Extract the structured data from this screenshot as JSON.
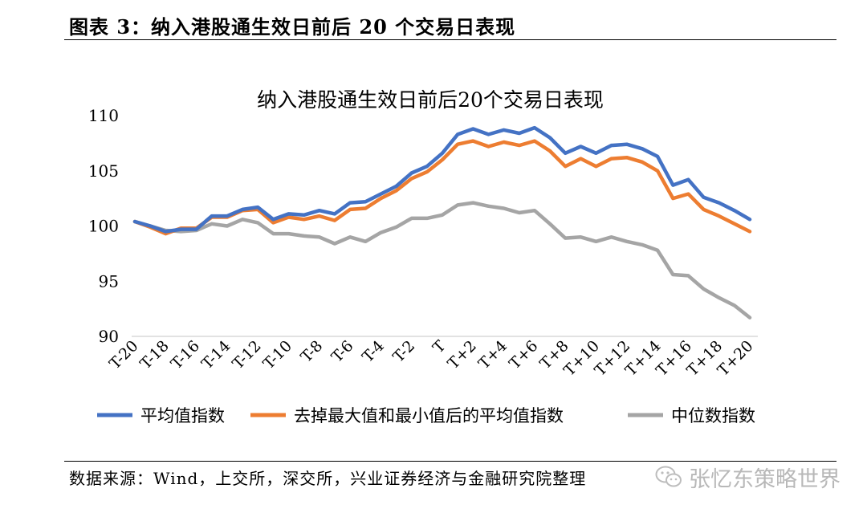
{
  "figure": {
    "title": "图表 3：纳入港股通生效日前后 20 个交易日表现",
    "source": "数据来源：Wind，上交所，深交所，兴业证券经济与金融研究院整理",
    "watermark": "张忆东策略世界"
  },
  "chart_data": {
    "type": "line",
    "title": "纳入港股通生效日前后20个交易日表现",
    "xlabel": "",
    "ylabel": "",
    "ylim": [
      90,
      110
    ],
    "yticks": [
      90,
      95,
      100,
      105,
      110
    ],
    "grid": false,
    "legend_position": "bottom",
    "x": [
      "T-20",
      "T-19",
      "T-18",
      "T-17",
      "T-16",
      "T-15",
      "T-14",
      "T-13",
      "T-12",
      "T-11",
      "T-10",
      "T-9",
      "T-8",
      "T-7",
      "T-6",
      "T-5",
      "T-4",
      "T-3",
      "T-2",
      "T-1",
      "T",
      "T+1",
      "T+2",
      "T+3",
      "T+4",
      "T+5",
      "T+6",
      "T+7",
      "T+8",
      "T+9",
      "T+10",
      "T+11",
      "T+12",
      "T+13",
      "T+14",
      "T+15",
      "T+16",
      "T+17",
      "T+18",
      "T+19",
      "T+20"
    ],
    "xticks": [
      "T-20",
      "T-18",
      "T-16",
      "T-14",
      "T-12",
      "T-10",
      "T-8",
      "T-6",
      "T-4",
      "T-2",
      "T",
      "T+2",
      "T+4",
      "T+6",
      "T+8",
      "T+10",
      "T+12",
      "T+14",
      "T+16",
      "T+18",
      "T+20"
    ],
    "series": [
      {
        "name": "平均值指数",
        "color": "#4472C4",
        "values": [
          100.4,
          100.0,
          99.5,
          99.7,
          99.7,
          100.9,
          100.9,
          101.5,
          101.7,
          100.6,
          101.1,
          101.0,
          101.4,
          101.1,
          102.1,
          102.2,
          102.9,
          103.6,
          104.8,
          105.4,
          106.6,
          108.3,
          108.8,
          108.3,
          108.7,
          108.4,
          108.9,
          108.0,
          106.6,
          107.2,
          106.6,
          107.3,
          107.4,
          107.0,
          106.3,
          103.7,
          104.2,
          102.6,
          102.1,
          101.4,
          100.6
        ]
      },
      {
        "name": "去掉最大值和最小值后的平均值指数",
        "color": "#ED7D31",
        "values": [
          100.4,
          99.9,
          99.3,
          99.8,
          99.8,
          100.8,
          100.8,
          101.4,
          101.5,
          100.3,
          100.8,
          100.6,
          100.9,
          100.5,
          101.5,
          101.6,
          102.5,
          103.2,
          104.3,
          104.9,
          106.0,
          107.4,
          107.7,
          107.2,
          107.6,
          107.3,
          107.7,
          106.8,
          105.4,
          106.1,
          105.4,
          106.1,
          106.2,
          105.8,
          105.0,
          102.5,
          102.9,
          101.5,
          100.9,
          100.2,
          99.5
        ]
      },
      {
        "name": "中位数指数",
        "color": "#A5A5A5",
        "values": [
          100.4,
          100.0,
          99.6,
          99.5,
          99.6,
          100.2,
          100.0,
          100.6,
          100.3,
          99.3,
          99.3,
          99.1,
          99.0,
          98.4,
          99.0,
          98.6,
          99.4,
          99.9,
          100.7,
          100.7,
          101.0,
          101.9,
          102.1,
          101.8,
          101.6,
          101.2,
          101.4,
          100.2,
          98.9,
          99.0,
          98.6,
          99.0,
          98.6,
          98.3,
          97.8,
          95.6,
          95.5,
          94.3,
          93.5,
          92.8,
          91.7
        ]
      }
    ]
  }
}
